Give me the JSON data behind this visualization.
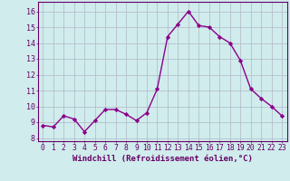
{
  "x": [
    0,
    1,
    2,
    3,
    4,
    5,
    6,
    7,
    8,
    9,
    10,
    11,
    12,
    13,
    14,
    15,
    16,
    17,
    18,
    19,
    20,
    21,
    22,
    23
  ],
  "y": [
    8.8,
    8.7,
    9.4,
    9.2,
    8.4,
    9.1,
    9.8,
    9.8,
    9.5,
    9.1,
    9.6,
    11.1,
    14.4,
    15.2,
    16.0,
    15.1,
    15.0,
    14.4,
    14.0,
    12.9,
    11.1,
    10.5,
    10.0,
    9.4
  ],
  "line_color": "#8b008b",
  "marker": "D",
  "marker_size": 2.2,
  "linewidth": 1.0,
  "bg_color": "#d0ecec",
  "grid_color": "#b0b8c8",
  "xlabel": "Windchill (Refroidissement éolien,°C)",
  "xlabel_fontsize": 6.5,
  "ylabel_ticks": [
    8,
    9,
    10,
    11,
    12,
    13,
    14,
    15,
    16
  ],
  "xtick_labels": [
    "0",
    "1",
    "2",
    "3",
    "4",
    "5",
    "6",
    "7",
    "8",
    "9",
    "10",
    "11",
    "12",
    "13",
    "14",
    "15",
    "16",
    "17",
    "18",
    "19",
    "20",
    "21",
    "22",
    "23"
  ],
  "ylim": [
    7.8,
    16.6
  ],
  "xlim": [
    -0.5,
    23.5
  ],
  "tick_fontsize": 5.8,
  "ytick_fontsize": 6.0
}
